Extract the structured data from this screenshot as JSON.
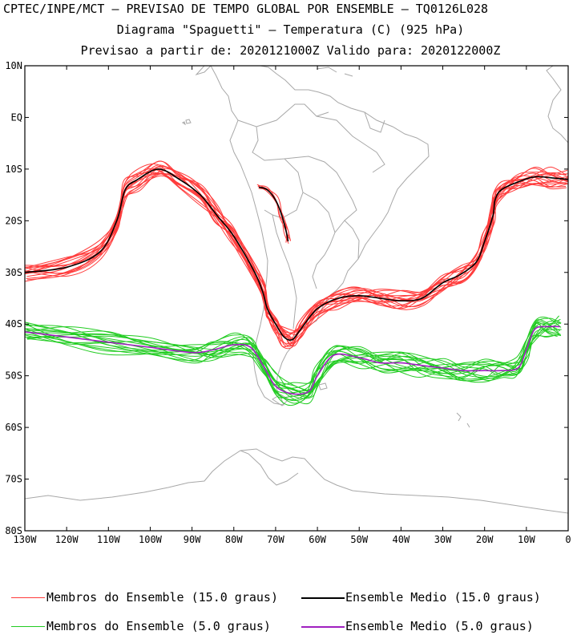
{
  "header": {
    "line1": "CPTEC/INPE/MCT – PREVISAO DE TEMPO GLOBAL POR ENSEMBLE – TQ0126L028",
    "line2": "Diagrama \"Spaguetti\" – Temperatura (C) (925 hPa)",
    "line3": "Previsao a partir de: 2020121000Z  Valido para: 2020122000Z"
  },
  "axes": {
    "lat_labels": [
      "10N",
      "EQ",
      "10S",
      "20S",
      "30S",
      "40S",
      "50S",
      "60S",
      "70S",
      "80S"
    ],
    "lon_labels": [
      "130W",
      "120W",
      "110W",
      "100W",
      "90W",
      "80W",
      "70W",
      "60W",
      "50W",
      "40W",
      "30W",
      "20W",
      "10W",
      "0"
    ]
  },
  "legend": {
    "members15": "Membros do Ensemble (15.0 graus)",
    "mean15": "Ensemble Medio (15.0 graus)",
    "members5": "Membros do Ensemble (5.0 graus)",
    "mean5": "Ensemble Medio (5.0 graus)"
  },
  "colors": {
    "members15": "#ff3b3b",
    "mean15": "#000000",
    "members5": "#22cc22",
    "mean5": "#a020c0",
    "coast": "#a8a8a8"
  },
  "chart_data": {
    "type": "line",
    "projection": "lat-lon",
    "xlim": [
      -130,
      0
    ],
    "ylim": [
      -80,
      10
    ],
    "series": [
      {
        "name": "Ensemble Medio (15.0 graus)",
        "lon": [
          -130,
          -120,
          -112,
          -108,
          -106,
          -103,
          -98,
          -93,
          -88,
          -84,
          -80,
          -75,
          -73,
          -72,
          -70,
          -68,
          -66,
          -64,
          -60,
          -55,
          -50,
          -45,
          -40,
          -35,
          -30,
          -26,
          -22,
          -20,
          -18,
          -17.5,
          -16,
          -12,
          -8,
          -4,
          0
        ],
        "lat": [
          -30,
          -29,
          -26,
          -20,
          -14,
          -12,
          -10,
          -12,
          -15,
          -19,
          -23,
          -30,
          -34,
          -37,
          -40,
          -42.5,
          -43,
          -41,
          -37,
          -35,
          -34.5,
          -35,
          -35.5,
          -35,
          -32,
          -30.5,
          -28,
          -24,
          -19,
          -16,
          -14,
          -12.5,
          -11.5,
          -11.7,
          -12
        ]
      },
      {
        "name": "Ensemble Medio (15.0 graus) Andes",
        "lon": [
          -74,
          -72,
          -70,
          -68.5,
          -67.5,
          -67
        ],
        "lat": [
          -13.5,
          -14,
          -16,
          -19,
          -22,
          -24
        ]
      },
      {
        "name": "Ensemble Medio (5.0 graus)",
        "lon": [
          -130,
          -120,
          -110,
          -100,
          -90,
          -85,
          -80,
          -76,
          -73,
          -70,
          -66,
          -62,
          -60,
          -56,
          -50,
          -45,
          -40,
          -35,
          -30,
          -25,
          -20,
          -16,
          -12,
          -10,
          -8,
          -5,
          -2
        ],
        "lat": [
          -41.5,
          -42.5,
          -43.5,
          -44.5,
          -45.5,
          -45,
          -44,
          -44.5,
          -48,
          -52,
          -53.5,
          -53,
          -50,
          -46,
          -46.5,
          -47.5,
          -47.5,
          -48,
          -48.5,
          -49,
          -49,
          -49,
          -48.5,
          -45,
          -41,
          -40.5,
          -40.5
        ]
      }
    ]
  }
}
